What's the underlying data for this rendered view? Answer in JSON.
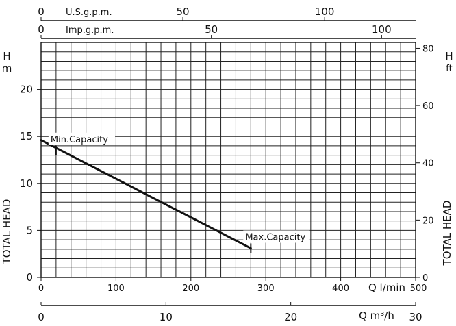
{
  "chart_data": {
    "type": "line",
    "title": "",
    "series": [
      {
        "name": "",
        "x": [
          0,
          280
        ],
        "y": [
          14.6,
          3.1
        ]
      }
    ],
    "x_axis": {
      "label": "Q l/min",
      "range": [
        0,
        500
      ],
      "ticks": [
        0,
        100,
        200,
        300,
        400,
        500
      ]
    },
    "y_axis_left": {
      "unit": "H m",
      "label": "TOTAL HEAD",
      "range": [
        0,
        25
      ],
      "ticks": [
        0,
        5,
        10,
        15,
        20
      ]
    },
    "y_axis_right": {
      "unit": "H ft",
      "label": "TOTAL HEAD",
      "range_approx": [
        0,
        82
      ],
      "ticks": [
        0,
        20,
        40,
        60,
        80
      ]
    },
    "top_axes": [
      {
        "label": "U.S.g.p.m.",
        "ticks": [
          0,
          50,
          100
        ]
      },
      {
        "label": "Imp.g.p.m.",
        "ticks": [
          0,
          50,
          100
        ]
      }
    ],
    "bottom_axis_2": {
      "label": "Q m³/h",
      "ticks": [
        0,
        10,
        20,
        30
      ]
    },
    "annotations": [
      {
        "text": "Min.Capacity",
        "x": 20,
        "y": 13.5
      },
      {
        "text": "Max.Capacity",
        "x": 280,
        "y": 3.1
      }
    ],
    "grid": true
  }
}
